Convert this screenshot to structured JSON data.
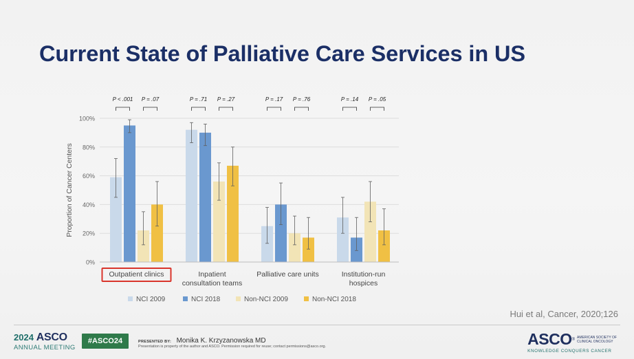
{
  "slide": {
    "title": "Current State of Palliative Care Services in US",
    "citation": "Hui et al, Cancer, 2020;126"
  },
  "chart_data": {
    "type": "bar",
    "ylabel": "Proportion of Cancer Centers",
    "ylim": [
      0,
      100
    ],
    "yticks": [
      0,
      20,
      40,
      60,
      80,
      100
    ],
    "ytick_labels": [
      "0%",
      "20%",
      "40%",
      "60%",
      "80%",
      "100%"
    ],
    "categories": [
      [
        "Outpatient clinics"
      ],
      [
        "Inpatient",
        "consultation teams"
      ],
      [
        "Palliative care units"
      ],
      [
        "Institution-run",
        "hospices"
      ]
    ],
    "highlighted_category": 0,
    "highlight_color": "#d9342b",
    "series": [
      {
        "name": "NCI 2009",
        "color": "#c9d9ea",
        "values": [
          59,
          92,
          25,
          31
        ],
        "ci": [
          [
            45,
            72
          ],
          [
            83,
            97
          ],
          [
            13,
            38
          ],
          [
            20,
            45
          ]
        ]
      },
      {
        "name": "NCI 2018",
        "color": "#6a98cf",
        "values": [
          95,
          90,
          40,
          17
        ],
        "ci": [
          [
            90,
            99
          ],
          [
            81,
            96
          ],
          [
            26,
            55
          ],
          [
            8,
            31
          ]
        ]
      },
      {
        "name": "Non-NCI 2009",
        "color": "#f2e4b6",
        "values": [
          22,
          56,
          20,
          42
        ],
        "ci": [
          [
            12,
            35
          ],
          [
            43,
            69
          ],
          [
            12,
            32
          ],
          [
            28,
            56
          ]
        ]
      },
      {
        "name": "Non-NCI 2018",
        "color": "#f0c044",
        "values": [
          40,
          67,
          17,
          22
        ],
        "ci": [
          [
            25,
            56
          ],
          [
            53,
            80
          ],
          [
            9,
            31
          ],
          [
            12,
            37
          ]
        ]
      }
    ],
    "p_values": [
      [
        "P < .001",
        "P = .07"
      ],
      [
        "P = .71",
        "P = .27"
      ],
      [
        "P = .17",
        "P = .76"
      ],
      [
        "P = .14",
        "P = .05"
      ]
    ],
    "legend_position": "bottom",
    "grid": "horizontal"
  },
  "footer": {
    "meeting_year": "2024",
    "meeting_org": "ASCO",
    "meeting_sub": "ANNUAL MEETING",
    "hashtag": "#ASCO24",
    "presented_label": "PRESENTED BY:",
    "presenter": "Monika K. Krzyzanowska MD",
    "disclaimer": "Presentation is property of the author and ASCO. Permission required for reuse; contact permissions@asco.org.",
    "logo_text": "ASCO",
    "logo_reg": "®",
    "society_line1": "AMERICAN SOCIETY OF",
    "society_line2": "CLINICAL ONCOLOGY",
    "tagline": "KNOWLEDGE CONQUERS CANCER"
  }
}
